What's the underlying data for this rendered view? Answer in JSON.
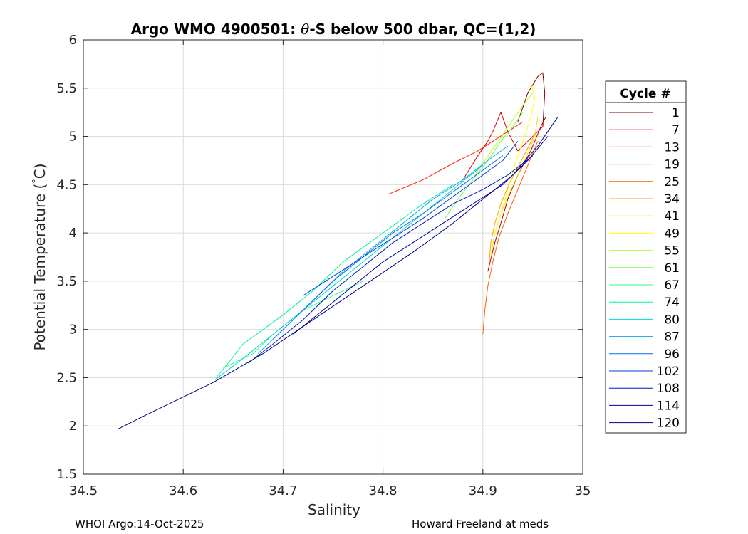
{
  "chart_data": {
    "type": "line",
    "title_parts": [
      "Argo WMO 4900501: ",
      "θ",
      "-S below 500 dbar,  QC=(1,2)"
    ],
    "xlabel": "Salinity",
    "ylabel_parts": [
      "Potential Temperature (",
      "°",
      "C)"
    ],
    "xlim": [
      34.5,
      35.0
    ],
    "ylim": [
      1.5,
      6.0
    ],
    "xticks": [
      34.5,
      34.6,
      34.7,
      34.8,
      34.9,
      35.0
    ],
    "xtick_labels": [
      "34.5",
      "34.6",
      "34.7",
      "34.8",
      "34.9",
      "35"
    ],
    "yticks": [
      1.5,
      2.0,
      2.5,
      3.0,
      3.5,
      4.0,
      4.5,
      5.0,
      5.5,
      6.0
    ],
    "ytick_labels": [
      "1.5",
      "2",
      "2.5",
      "3",
      "3.5",
      "4",
      "4.5",
      "5",
      "5.5",
      "6"
    ],
    "grid": true,
    "legend": {
      "title": "Cycle #",
      "position": "right",
      "entries": [
        "1",
        "7",
        "13",
        "19",
        "25",
        "34",
        "41",
        "49",
        "55",
        "61",
        "67",
        "74",
        "80",
        "87",
        "96",
        "102",
        "108",
        "114",
        "120"
      ]
    },
    "series": [
      {
        "name": "1",
        "color": "#800000",
        "x": [
          34.935,
          34.945,
          34.955,
          34.96,
          34.962,
          34.96
        ],
        "y": [
          5.15,
          5.45,
          5.62,
          5.66,
          5.45,
          5.1
        ]
      },
      {
        "name": "7",
        "color": "#b00000",
        "x": [
          34.905,
          34.912,
          34.918,
          34.925,
          34.935,
          34.948,
          34.958,
          34.963
        ],
        "y": [
          3.6,
          3.9,
          4.1,
          4.35,
          4.6,
          4.85,
          5.1,
          5.2
        ]
      },
      {
        "name": "13",
        "color": "#e00000",
        "x": [
          34.88,
          34.895,
          34.905,
          34.91,
          34.918,
          34.925,
          34.935,
          34.945,
          34.955,
          34.96
        ],
        "y": [
          4.55,
          4.8,
          4.95,
          5.05,
          5.25,
          5.05,
          4.85,
          4.95,
          5.05,
          5.1
        ]
      },
      {
        "name": "19",
        "color": "#ff2000",
        "x": [
          34.805,
          34.84,
          34.87,
          34.895,
          34.91,
          34.925,
          34.94
        ],
        "y": [
          4.4,
          4.55,
          4.72,
          4.85,
          4.95,
          5.05,
          5.15
        ]
      },
      {
        "name": "25",
        "color": "#ff6000",
        "x": [
          34.9,
          34.902,
          34.905,
          34.91,
          34.916,
          34.925,
          34.935,
          34.945,
          34.955
        ],
        "y": [
          2.95,
          3.2,
          3.45,
          3.7,
          3.95,
          4.2,
          4.45,
          4.7,
          4.95
        ]
      },
      {
        "name": "34",
        "color": "#ffa000",
        "x": [
          34.906,
          34.908,
          34.912,
          34.918,
          34.926,
          34.936,
          34.946,
          34.953
        ],
        "y": [
          3.65,
          3.9,
          4.1,
          4.3,
          4.5,
          4.7,
          4.9,
          5.05
        ]
      },
      {
        "name": "41",
        "color": "#ffd800",
        "x": [
          34.908,
          34.912,
          34.918,
          34.926,
          34.935,
          34.944,
          34.952,
          34.955
        ],
        "y": [
          3.75,
          4.0,
          4.2,
          4.4,
          4.6,
          4.8,
          5.0,
          5.2
        ]
      },
      {
        "name": "49",
        "color": "#ffff00",
        "x": [
          34.912,
          34.918,
          34.925,
          34.932,
          34.94,
          34.948,
          34.952,
          34.948
        ],
        "y": [
          4.0,
          4.2,
          4.45,
          4.7,
          4.95,
          5.2,
          5.4,
          5.55
        ]
      },
      {
        "name": "55",
        "color": "#b0ff30",
        "x": [
          34.892,
          34.902,
          34.912,
          34.922,
          34.932,
          34.942,
          34.95
        ],
        "y": [
          4.6,
          4.75,
          4.9,
          5.05,
          5.2,
          5.35,
          5.45
        ]
      },
      {
        "name": "61",
        "color": "#70ff40",
        "x": [
          34.862,
          34.875,
          34.89,
          34.905,
          34.918,
          34.93,
          34.94
        ],
        "y": [
          4.15,
          4.35,
          4.55,
          4.75,
          4.95,
          5.1,
          5.25
        ]
      },
      {
        "name": "67",
        "color": "#30ff70",
        "x": [
          34.64,
          34.67,
          34.69,
          34.72,
          34.75,
          34.78
        ],
        "y": [
          2.6,
          2.75,
          2.95,
          3.2,
          3.35,
          3.5
        ]
      },
      {
        "name": "74",
        "color": "#00f0a0",
        "x": [
          34.633,
          34.645,
          34.66,
          34.68,
          34.7,
          34.73,
          34.76,
          34.8,
          34.84,
          34.87
        ],
        "y": [
          2.5,
          2.65,
          2.85,
          3.0,
          3.15,
          3.4,
          3.7,
          4.0,
          4.3,
          4.5
        ]
      },
      {
        "name": "80",
        "color": "#00d8d8",
        "x": [
          34.632,
          34.66,
          34.69,
          34.72,
          34.75,
          34.78,
          34.81,
          34.84,
          34.87,
          34.9
        ],
        "y": [
          2.48,
          2.7,
          2.95,
          3.2,
          3.45,
          3.7,
          3.95,
          4.2,
          4.45,
          4.7
        ]
      },
      {
        "name": "87",
        "color": "#00a8e8",
        "x": [
          34.675,
          34.7,
          34.73,
          34.76,
          34.79,
          34.82,
          34.85,
          34.88,
          34.905,
          34.925
        ],
        "y": [
          2.75,
          3.0,
          3.3,
          3.6,
          3.85,
          4.1,
          4.35,
          4.55,
          4.75,
          4.9
        ]
      },
      {
        "name": "96",
        "color": "#0070f0",
        "x": [
          34.69,
          34.72,
          34.75,
          34.78,
          34.81,
          34.84,
          34.86,
          34.88,
          34.9,
          34.92
        ],
        "y": [
          2.9,
          3.2,
          3.5,
          3.75,
          4.0,
          4.2,
          4.35,
          4.5,
          4.65,
          4.8
        ]
      },
      {
        "name": "102",
        "color": "#0040e0",
        "x": [
          34.72,
          34.75,
          34.78,
          34.81,
          34.84,
          34.86,
          34.88,
          34.9,
          34.92,
          34.935
        ],
        "y": [
          3.35,
          3.55,
          3.75,
          3.95,
          4.15,
          4.3,
          4.45,
          4.6,
          4.75,
          4.95
        ]
      },
      {
        "name": "108",
        "color": "#0018c8",
        "x": [
          34.665,
          34.69,
          34.72,
          34.75,
          34.78,
          34.81,
          34.84,
          34.87,
          34.9,
          34.925,
          34.95
        ],
        "y": [
          2.65,
          2.85,
          3.1,
          3.4,
          3.65,
          3.9,
          4.1,
          4.3,
          4.45,
          4.6,
          4.8
        ]
      },
      {
        "name": "114",
        "color": "#0000a8",
        "x": [
          34.71,
          34.74,
          34.77,
          34.8,
          34.83,
          34.86,
          34.89,
          34.92,
          34.945,
          34.965
        ],
        "y": [
          2.95,
          3.2,
          3.45,
          3.7,
          3.9,
          4.1,
          4.3,
          4.5,
          4.75,
          5.0
        ]
      },
      {
        "name": "120",
        "color": "#000080",
        "x": [
          34.535,
          34.56,
          34.59,
          34.63,
          34.68,
          34.73,
          34.78,
          34.83,
          34.87,
          34.9,
          34.93,
          34.955,
          34.975
        ],
        "y": [
          1.97,
          2.1,
          2.25,
          2.45,
          2.75,
          3.1,
          3.45,
          3.8,
          4.1,
          4.35,
          4.6,
          4.9,
          5.2
        ]
      }
    ]
  },
  "footer": {
    "left": "WHOI Argo:14-Oct-2025",
    "right": "Howard Freeland at meds"
  }
}
